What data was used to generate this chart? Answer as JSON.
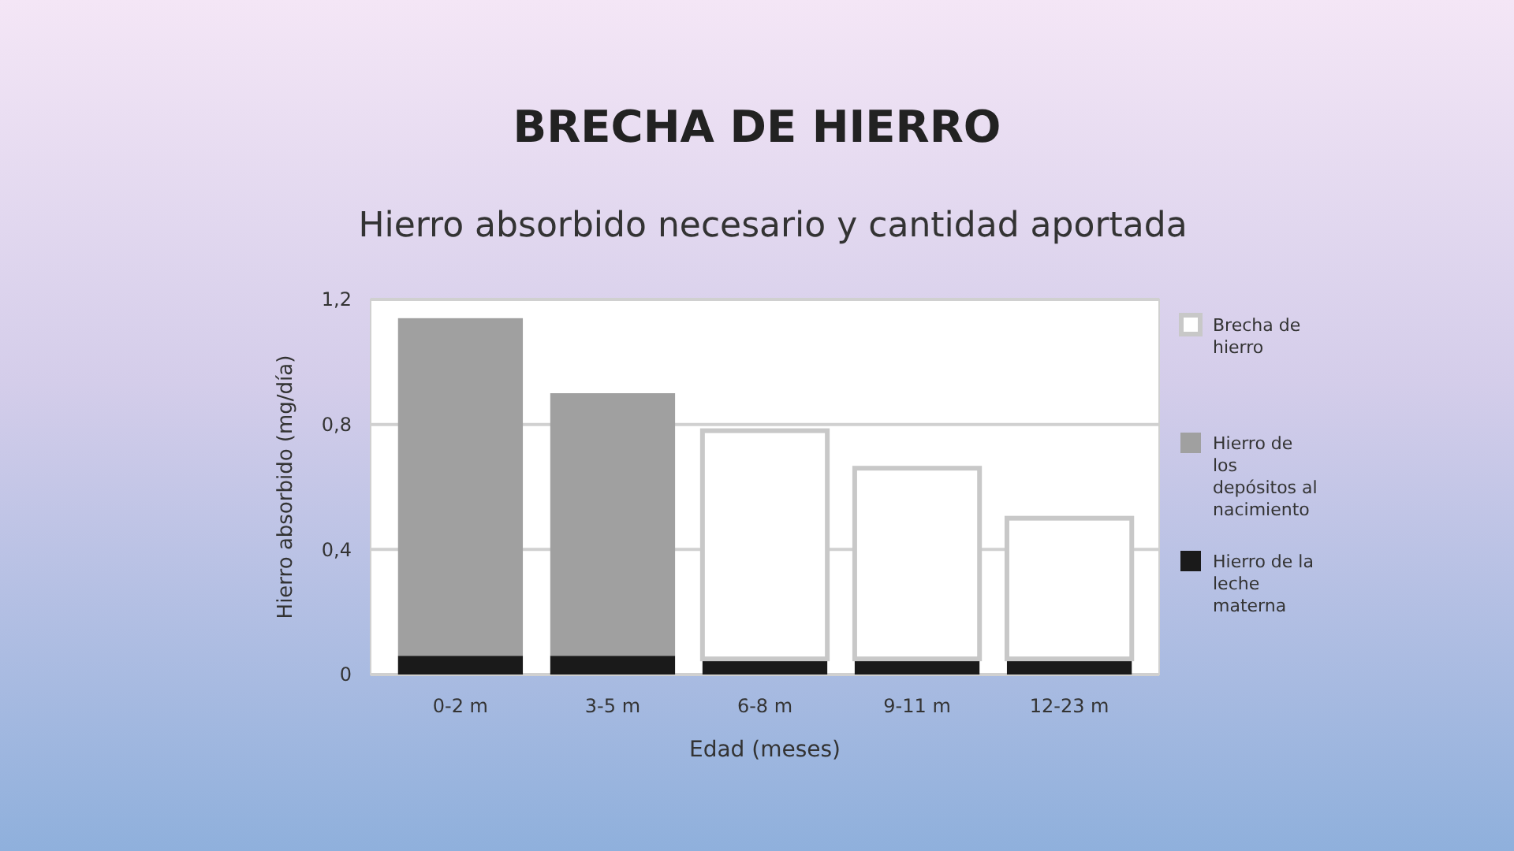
{
  "chart_data": {
    "type": "bar",
    "title": "BRECHA DE HIERRO",
    "subtitle": "Hierro absorbido necesario y cantidad aportada",
    "xlabel": "Edad (meses)",
    "ylabel": "Hierro absorbido (mg/día)",
    "categories": [
      "0-2 m",
      "3-5 m",
      "6-8 m",
      "9-11 m",
      "12-23 m"
    ],
    "stacked": true,
    "series": [
      {
        "name": "Hierro de la leche materna",
        "color": "#1a1a1a",
        "values": [
          0.06,
          0.06,
          0.05,
          0.05,
          0.05
        ]
      },
      {
        "name": "Hierro de los depósitos al nacimiento",
        "color": "#a0a0a0",
        "values": [
          1.08,
          0.84,
          0,
          0,
          0
        ]
      },
      {
        "name": "Brecha de hierro",
        "color": "#ffffff",
        "values": [
          0,
          0,
          0.73,
          0.61,
          0.45
        ]
      }
    ],
    "ylim": [
      0,
      1.2
    ],
    "yticks": [
      {
        "value": 0,
        "label": "0"
      },
      {
        "value": 0.4,
        "label": "0,4"
      },
      {
        "value": 0.8,
        "label": "0,8"
      },
      {
        "value": 1.2,
        "label": "1,2"
      }
    ],
    "grid": "y",
    "legend": "right"
  }
}
